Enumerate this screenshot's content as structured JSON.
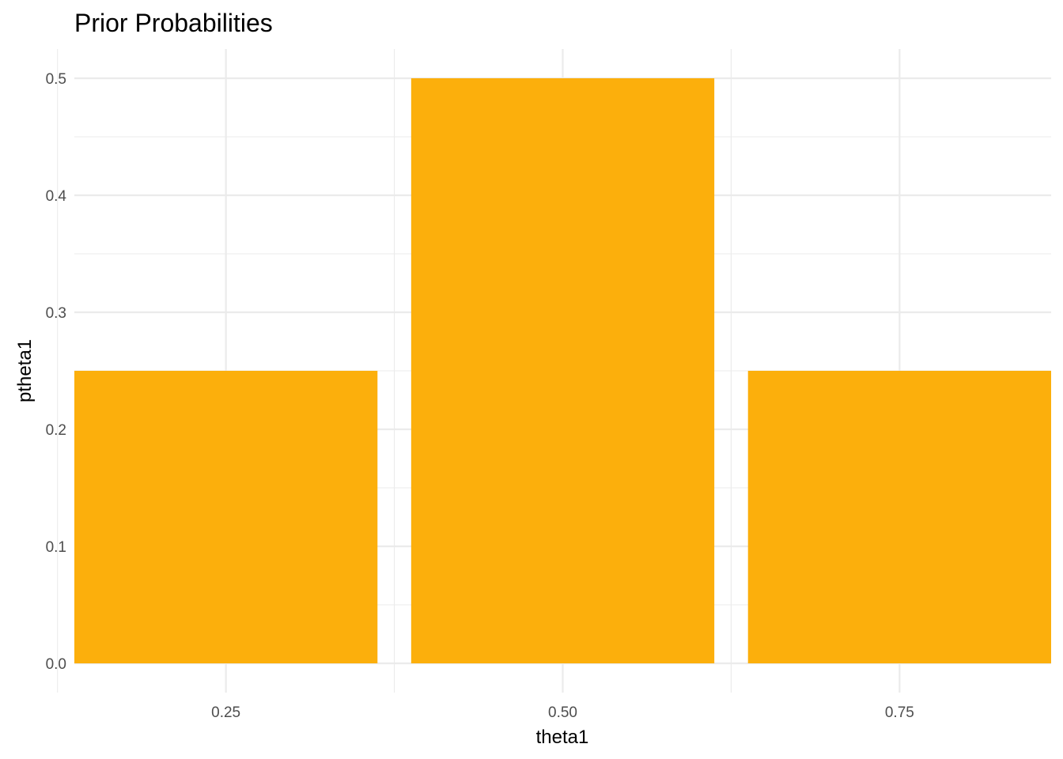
{
  "chart_data": {
    "type": "bar",
    "title": "Prior Probabilities",
    "xlabel": "theta1",
    "ylabel": "ptheta1",
    "categories": [
      "0.25",
      "0.50",
      "0.75"
    ],
    "x": [
      0.25,
      0.5,
      0.75
    ],
    "values": [
      0.25,
      0.5,
      0.25
    ],
    "bar_width": 0.225,
    "xlim": [
      0.1375,
      0.8625
    ],
    "ylim": [
      0,
      0.5
    ],
    "y_ticks": [
      0.0,
      0.1,
      0.2,
      0.3,
      0.4,
      0.5
    ],
    "y_tick_labels": [
      "0.0",
      "0.1",
      "0.2",
      "0.3",
      "0.4",
      "0.5"
    ],
    "x_ticks": [
      0.25,
      0.5,
      0.75
    ],
    "x_tick_labels": [
      "0.25",
      "0.50",
      "0.75"
    ],
    "grid": true,
    "legend": "none",
    "bar_color": "#fcaf0c",
    "grid_color": "#ebebeb"
  }
}
